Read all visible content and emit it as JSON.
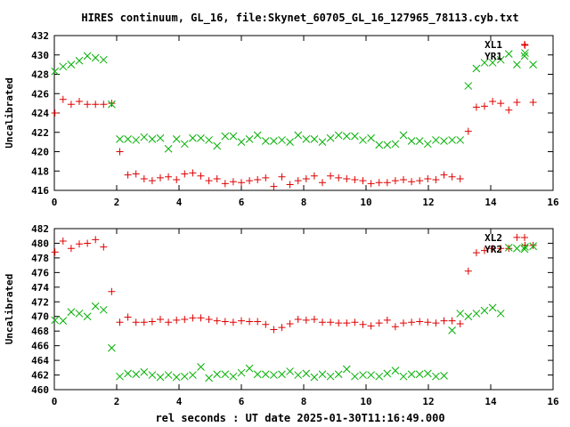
{
  "title": "HIRES continuum, GL_16, file:Skynet_60705_GL_16_127965_78113.cyb.txt",
  "xlabel": "rel seconds : UT date 2025-01-30T11:16:49.000",
  "colors": {
    "red": "#e00000",
    "green": "#00b000",
    "axis": "#000000"
  },
  "chart_data": [
    {
      "type": "scatter",
      "ylabel": "Uncalibrated",
      "xlim": [
        0,
        16
      ],
      "ylim": [
        416,
        432
      ],
      "xticks": [
        0,
        2,
        4,
        6,
        8,
        10,
        12,
        14,
        16
      ],
      "yticks": [
        416,
        418,
        420,
        422,
        424,
        426,
        428,
        430,
        432
      ],
      "grid": false,
      "legend_position": "top-right",
      "series": [
        {
          "name": "XL1",
          "marker": "plus",
          "color": "#e00000",
          "x": [
            0.02,
            0.28,
            0.54,
            0.8,
            1.06,
            1.32,
            1.58,
            1.84,
            2.1,
            2.36,
            2.62,
            2.88,
            3.14,
            3.4,
            3.66,
            3.92,
            4.18,
            4.44,
            4.7,
            4.96,
            5.22,
            5.48,
            5.74,
            6.0,
            6.26,
            6.52,
            6.78,
            7.04,
            7.3,
            7.56,
            7.82,
            8.08,
            8.34,
            8.6,
            8.86,
            9.12,
            9.38,
            9.64,
            9.9,
            10.16,
            10.42,
            10.68,
            10.94,
            11.2,
            11.46,
            11.72,
            11.98,
            12.24,
            12.5,
            12.76,
            13.02,
            13.28,
            13.54,
            13.8,
            14.06,
            14.32,
            14.58,
            14.84,
            15.1,
            15.36
          ],
          "y": [
            424.0,
            425.4,
            424.9,
            425.2,
            424.9,
            424.9,
            424.9,
            425.0,
            420.0,
            417.6,
            417.7,
            417.2,
            417.0,
            417.3,
            417.4,
            417.1,
            417.7,
            417.8,
            417.5,
            417.0,
            417.2,
            416.7,
            416.9,
            416.8,
            417.0,
            417.1,
            417.3,
            416.4,
            417.4,
            416.6,
            417.0,
            417.2,
            417.5,
            416.8,
            417.5,
            417.3,
            417.2,
            417.1,
            417.0,
            416.7,
            416.8,
            416.8,
            417.0,
            417.1,
            416.9,
            417.0,
            417.2,
            417.1,
            417.6,
            417.4,
            417.2,
            422.1,
            424.6,
            424.7,
            425.2,
            425.0,
            424.3,
            425.1,
            431.0,
            425.1
          ]
        },
        {
          "name": "YR1",
          "marker": "cross",
          "color": "#00b000",
          "x": [
            0.02,
            0.28,
            0.54,
            0.8,
            1.06,
            1.32,
            1.58,
            1.84,
            2.1,
            2.36,
            2.62,
            2.88,
            3.14,
            3.4,
            3.66,
            3.92,
            4.18,
            4.44,
            4.7,
            4.96,
            5.22,
            5.48,
            5.74,
            6.0,
            6.26,
            6.52,
            6.78,
            7.04,
            7.3,
            7.56,
            7.82,
            8.08,
            8.34,
            8.6,
            8.86,
            9.12,
            9.38,
            9.64,
            9.9,
            10.16,
            10.42,
            10.68,
            10.94,
            11.2,
            11.46,
            11.72,
            11.98,
            12.24,
            12.5,
            12.76,
            13.02,
            13.28,
            13.54,
            13.8,
            14.06,
            14.32,
            14.58,
            14.84,
            15.1,
            15.36
          ],
          "y": [
            428.3,
            428.8,
            429.0,
            429.4,
            429.9,
            429.7,
            429.5,
            424.9,
            421.3,
            421.3,
            421.2,
            421.5,
            421.3,
            421.4,
            420.3,
            421.3,
            420.8,
            421.4,
            421.4,
            421.2,
            420.6,
            421.6,
            421.6,
            421.0,
            421.3,
            421.7,
            421.1,
            421.1,
            421.2,
            421.0,
            421.7,
            421.3,
            421.3,
            421.0,
            421.4,
            421.7,
            421.6,
            421.6,
            421.2,
            421.4,
            420.7,
            420.7,
            420.8,
            421.7,
            421.1,
            421.1,
            420.8,
            421.2,
            421.1,
            421.2,
            421.2,
            426.8,
            428.6,
            429.2,
            429.2,
            429.5,
            430.1,
            429.0,
            430.2,
            429.0
          ]
        }
      ]
    },
    {
      "type": "scatter",
      "ylabel": "Uncalibrated",
      "xlim": [
        0,
        16
      ],
      "ylim": [
        460,
        482
      ],
      "xticks": [
        0,
        2,
        4,
        6,
        8,
        10,
        12,
        14,
        16
      ],
      "yticks": [
        460,
        462,
        464,
        466,
        468,
        470,
        472,
        474,
        476,
        478,
        480,
        482
      ],
      "grid": false,
      "legend_position": "top-right",
      "series": [
        {
          "name": "XL2",
          "marker": "plus",
          "color": "#e00000",
          "x": [
            0.02,
            0.28,
            0.54,
            0.8,
            1.06,
            1.32,
            1.58,
            1.84,
            2.1,
            2.36,
            2.62,
            2.88,
            3.14,
            3.4,
            3.66,
            3.92,
            4.18,
            4.44,
            4.7,
            4.96,
            5.22,
            5.48,
            5.74,
            6.0,
            6.26,
            6.52,
            6.78,
            7.04,
            7.3,
            7.56,
            7.82,
            8.08,
            8.34,
            8.6,
            8.86,
            9.12,
            9.38,
            9.64,
            9.9,
            10.16,
            10.42,
            10.68,
            10.94,
            11.2,
            11.46,
            11.72,
            11.98,
            12.24,
            12.5,
            12.76,
            13.02,
            13.28,
            13.54,
            13.8,
            14.06,
            14.32,
            14.58,
            14.84,
            15.1,
            15.36
          ],
          "y": [
            478.8,
            480.3,
            479.3,
            479.9,
            480.0,
            480.5,
            479.5,
            473.4,
            469.2,
            469.9,
            469.2,
            469.2,
            469.3,
            469.6,
            469.2,
            469.5,
            469.6,
            469.8,
            469.8,
            469.6,
            469.4,
            469.3,
            469.2,
            469.4,
            469.3,
            469.3,
            468.9,
            468.2,
            468.5,
            469.0,
            469.6,
            469.5,
            469.6,
            469.2,
            469.2,
            469.1,
            469.1,
            469.2,
            468.9,
            468.7,
            469.1,
            469.5,
            468.6,
            469.1,
            469.2,
            469.3,
            469.2,
            469.1,
            469.4,
            469.4,
            469.0,
            476.2,
            478.7,
            479.0,
            479.3,
            479.3,
            479.3,
            480.8,
            479.7,
            479.7
          ]
        },
        {
          "name": "YR2",
          "marker": "cross",
          "color": "#00b000",
          "x": [
            0.02,
            0.28,
            0.54,
            0.8,
            1.06,
            1.32,
            1.58,
            1.84,
            2.1,
            2.36,
            2.62,
            2.88,
            3.14,
            3.4,
            3.66,
            3.92,
            4.18,
            4.44,
            4.7,
            4.96,
            5.22,
            5.48,
            5.74,
            6.0,
            6.26,
            6.52,
            6.78,
            7.04,
            7.3,
            7.56,
            7.82,
            8.08,
            8.34,
            8.6,
            8.86,
            9.12,
            9.38,
            9.64,
            9.9,
            10.16,
            10.42,
            10.68,
            10.94,
            11.2,
            11.46,
            11.72,
            11.98,
            12.24,
            12.5,
            12.76,
            13.02,
            13.28,
            13.54,
            13.8,
            14.06,
            14.32,
            14.58,
            14.84,
            15.1,
            15.36
          ],
          "y": [
            469.5,
            469.4,
            470.6,
            470.4,
            470.0,
            471.4,
            470.9,
            465.7,
            461.8,
            462.2,
            462.1,
            462.4,
            462.0,
            461.7,
            462.0,
            461.7,
            461.8,
            462.0,
            463.1,
            461.6,
            462.1,
            462.1,
            461.8,
            462.3,
            462.9,
            462.1,
            462.1,
            462.0,
            462.1,
            462.5,
            462.0,
            462.2,
            461.7,
            462.1,
            461.8,
            462.1,
            462.8,
            461.8,
            462.0,
            462.0,
            461.8,
            462.2,
            462.6,
            461.8,
            462.1,
            462.1,
            462.2,
            461.8,
            461.9,
            468.1,
            470.4,
            470.0,
            470.4,
            470.8,
            471.2,
            470.4,
            479.4,
            479.3,
            479.5,
            479.6
          ]
        }
      ]
    }
  ]
}
